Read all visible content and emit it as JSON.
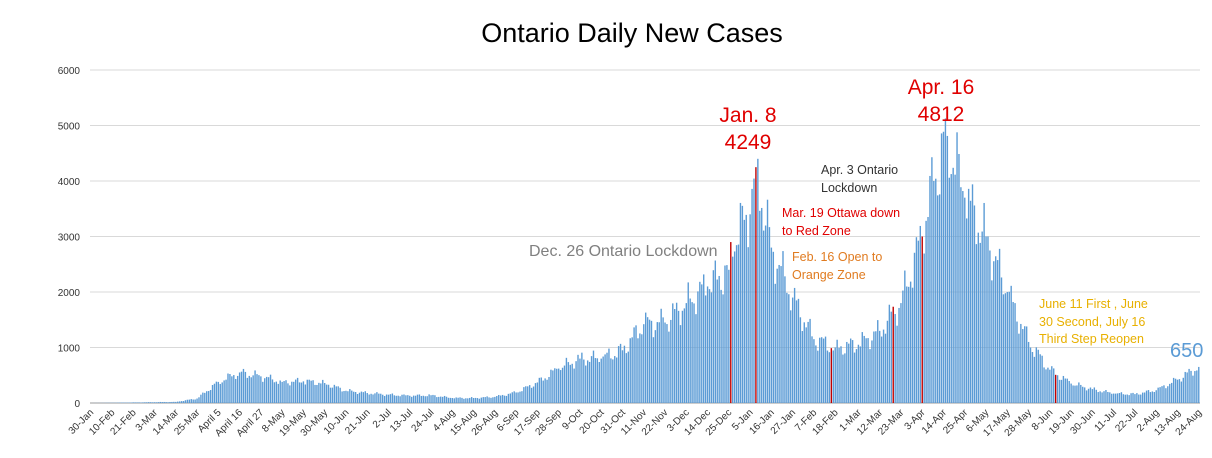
{
  "chart_data": {
    "type": "bar",
    "title": "Ontario Daily New Cases",
    "xlabel": "",
    "ylabel": "",
    "ylim": [
      0,
      6000
    ],
    "yticks": [
      0,
      1000,
      2000,
      3000,
      4000,
      5000,
      6000
    ],
    "grid": "horizontal",
    "bar_color": "#5b9bd5",
    "highlight_color": "#c00000",
    "categories": [
      "30-Jan",
      "10-Feb",
      "21-Feb",
      "3-Mar",
      "14-Mar",
      "25-Mar",
      "April 5",
      "April 16",
      "April 27",
      "8-May",
      "19-May",
      "30-May",
      "10-Jun",
      "21-Jun",
      "2-Jul",
      "13-Jul",
      "24-Jul",
      "4-Aug",
      "15-Aug",
      "26-Aug",
      "6-Sep",
      "17-Sep",
      "28-Sep",
      "9-Oct",
      "20-Oct",
      "31-Oct",
      "11-Nov",
      "22-Nov",
      "3-Dec",
      "14-Dec",
      "25-Dec",
      "5-Jan",
      "16-Jan",
      "27-Jan",
      "7-Feb",
      "18-Feb",
      "1-Mar",
      "12-Mar",
      "23-Mar",
      "3-Apr",
      "14-Apr",
      "25-Apr",
      "6-May",
      "17-May",
      "28-May",
      "8-Jun",
      "19-Jun",
      "30-Jun",
      "11-Jul",
      "22-Jul",
      "2-Aug",
      "13-Aug",
      "24-Aug"
    ],
    "anchors": [
      [
        "30-Jan",
        0
      ],
      [
        "14-Mar",
        20
      ],
      [
        "25-Mar",
        80
      ],
      [
        "April 5",
        380
      ],
      [
        "April 16",
        550
      ],
      [
        "April 27",
        480
      ],
      [
        "8-May",
        380
      ],
      [
        "19-May",
        390
      ],
      [
        "30-May",
        360
      ],
      [
        "10-Jun",
        220
      ],
      [
        "21-Jun",
        180
      ],
      [
        "2-Jul",
        150
      ],
      [
        "13-Jul",
        130
      ],
      [
        "24-Jul",
        140
      ],
      [
        "4-Aug",
        90
      ],
      [
        "15-Aug",
        90
      ],
      [
        "26-Aug",
        110
      ],
      [
        "6-Sep",
        190
      ],
      [
        "17-Sep",
        370
      ],
      [
        "28-Sep",
        620
      ],
      [
        "9-Oct",
        800
      ],
      [
        "20-Oct",
        800
      ],
      [
        "31-Oct",
        950
      ],
      [
        "11-Nov",
        1420
      ],
      [
        "22-Nov",
        1450
      ],
      [
        "3-Dec",
        1800
      ],
      [
        "14-Dec",
        2100
      ],
      [
        "25-Dec",
        2400
      ],
      [
        "26-Dec",
        2900
      ],
      [
        "5-Jan",
        3400
      ],
      [
        "8-Jan",
        4249
      ],
      [
        "16-Jan",
        2800
      ],
      [
        "27-Jan",
        1900
      ],
      [
        "7-Feb",
        1150
      ],
      [
        "18-Feb",
        1000
      ],
      [
        "1-Mar",
        1050
      ],
      [
        "12-Mar",
        1300
      ],
      [
        "23-Mar",
        1800
      ],
      [
        "3-Apr",
        3000
      ],
      [
        "9-Apr",
        4000
      ],
      [
        "16-Apr",
        4812
      ],
      [
        "25-Apr",
        3700
      ],
      [
        "6-May",
        3000
      ],
      [
        "17-May",
        2000
      ],
      [
        "28-May",
        1100
      ],
      [
        "8-Jun",
        600
      ],
      [
        "19-Jun",
        350
      ],
      [
        "30-Jun",
        250
      ],
      [
        "11-Jul",
        170
      ],
      [
        "22-Jul",
        160
      ],
      [
        "2-Aug",
        230
      ],
      [
        "13-Aug",
        420
      ],
      [
        "24-Aug",
        650
      ]
    ],
    "highlighted_dates": [
      "26-Dec",
      "8-Jan",
      "16-Feb",
      "19-Mar",
      "3-Apr",
      "11-Jun"
    ],
    "annotations": {
      "jan8": "Jan. 8\n4249",
      "apr16": "Apr. 16\n4812",
      "last_value": "650",
      "dec26": "Dec. 26 Ontario Lockdown",
      "apr3": "Apr. 3 Ontario\nLockdown",
      "mar19": "Mar. 19 Ottawa down\nto Red Zone",
      "feb16": "Feb. 16 Open to\nOrange Zone",
      "june11": "June 11 First , June\n30 Second, July 16\nThird Step Reopen"
    },
    "annotation_colors": {
      "peak": "#e00000",
      "last_value": "#5b9bd5",
      "dec26": "#808080",
      "apr3": "#333333",
      "mar19": "#e00000",
      "feb16": "#e07b20",
      "june11": "#e8b000"
    }
  }
}
